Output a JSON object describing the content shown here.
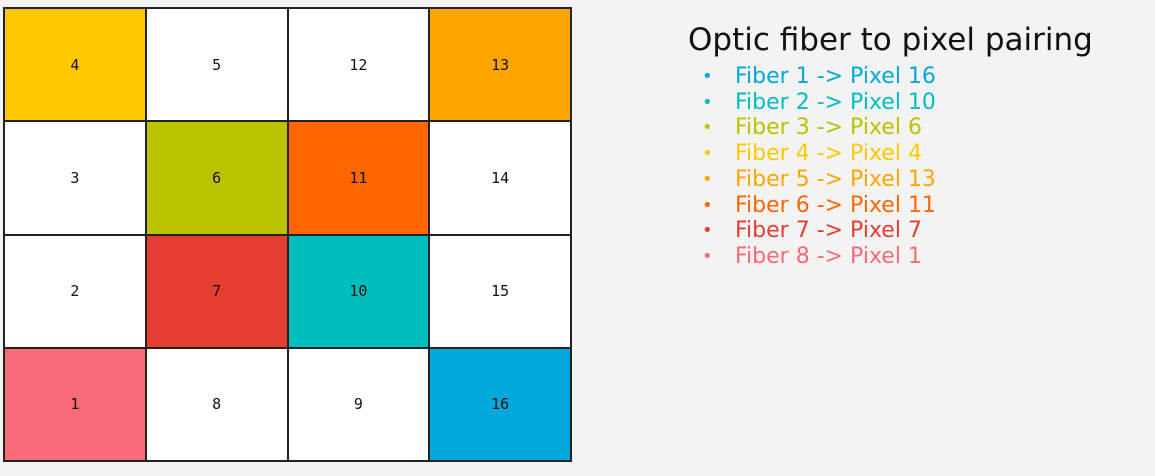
{
  "grid": {
    "cells": [
      {
        "label": "4",
        "color": "#FFC800"
      },
      {
        "label": "5",
        "color": "#FFFFFF"
      },
      {
        "label": "12",
        "color": "#FFFFFF"
      },
      {
        "label": "13",
        "color": "#FFA500"
      },
      {
        "label": "3",
        "color": "#FFFFFF"
      },
      {
        "label": "6",
        "color": "#BCC200"
      },
      {
        "label": "11",
        "color": "#FF6600"
      },
      {
        "label": "14",
        "color": "#FFFFFF"
      },
      {
        "label": "2",
        "color": "#FFFFFF"
      },
      {
        "label": "7",
        "color": "#E53E30"
      },
      {
        "label": "10",
        "color": "#00BEBE"
      },
      {
        "label": "15",
        "color": "#FFFFFF"
      },
      {
        "label": "1",
        "color": "#F96A78"
      },
      {
        "label": "8",
        "color": "#FFFFFF"
      },
      {
        "label": "9",
        "color": "#FFFFFF"
      },
      {
        "label": "16",
        "color": "#00A8DC"
      }
    ]
  },
  "legend": {
    "title": "Optic fiber to pixel pairing",
    "bullet": "•",
    "items": [
      {
        "text": "Fiber 1 -> Pixel 16",
        "color": "#00A8DC"
      },
      {
        "text": "Fiber 2 -> Pixel 10",
        "color": "#00BEBE"
      },
      {
        "text": "Fiber 3 -> Pixel 6",
        "color": "#BCC200"
      },
      {
        "text": "Fiber 4 -> Pixel 4",
        "color": "#FFC800"
      },
      {
        "text": "Fiber 5 -> Pixel 13",
        "color": "#FFA500"
      },
      {
        "text": "Fiber 6 -> Pixel 11",
        "color": "#FF6600"
      },
      {
        "text": "Fiber 7 -> Pixel 7",
        "color": "#E53E30"
      },
      {
        "text": "Fiber 8 -> Pixel 1",
        "color": "#F96A78"
      }
    ]
  }
}
